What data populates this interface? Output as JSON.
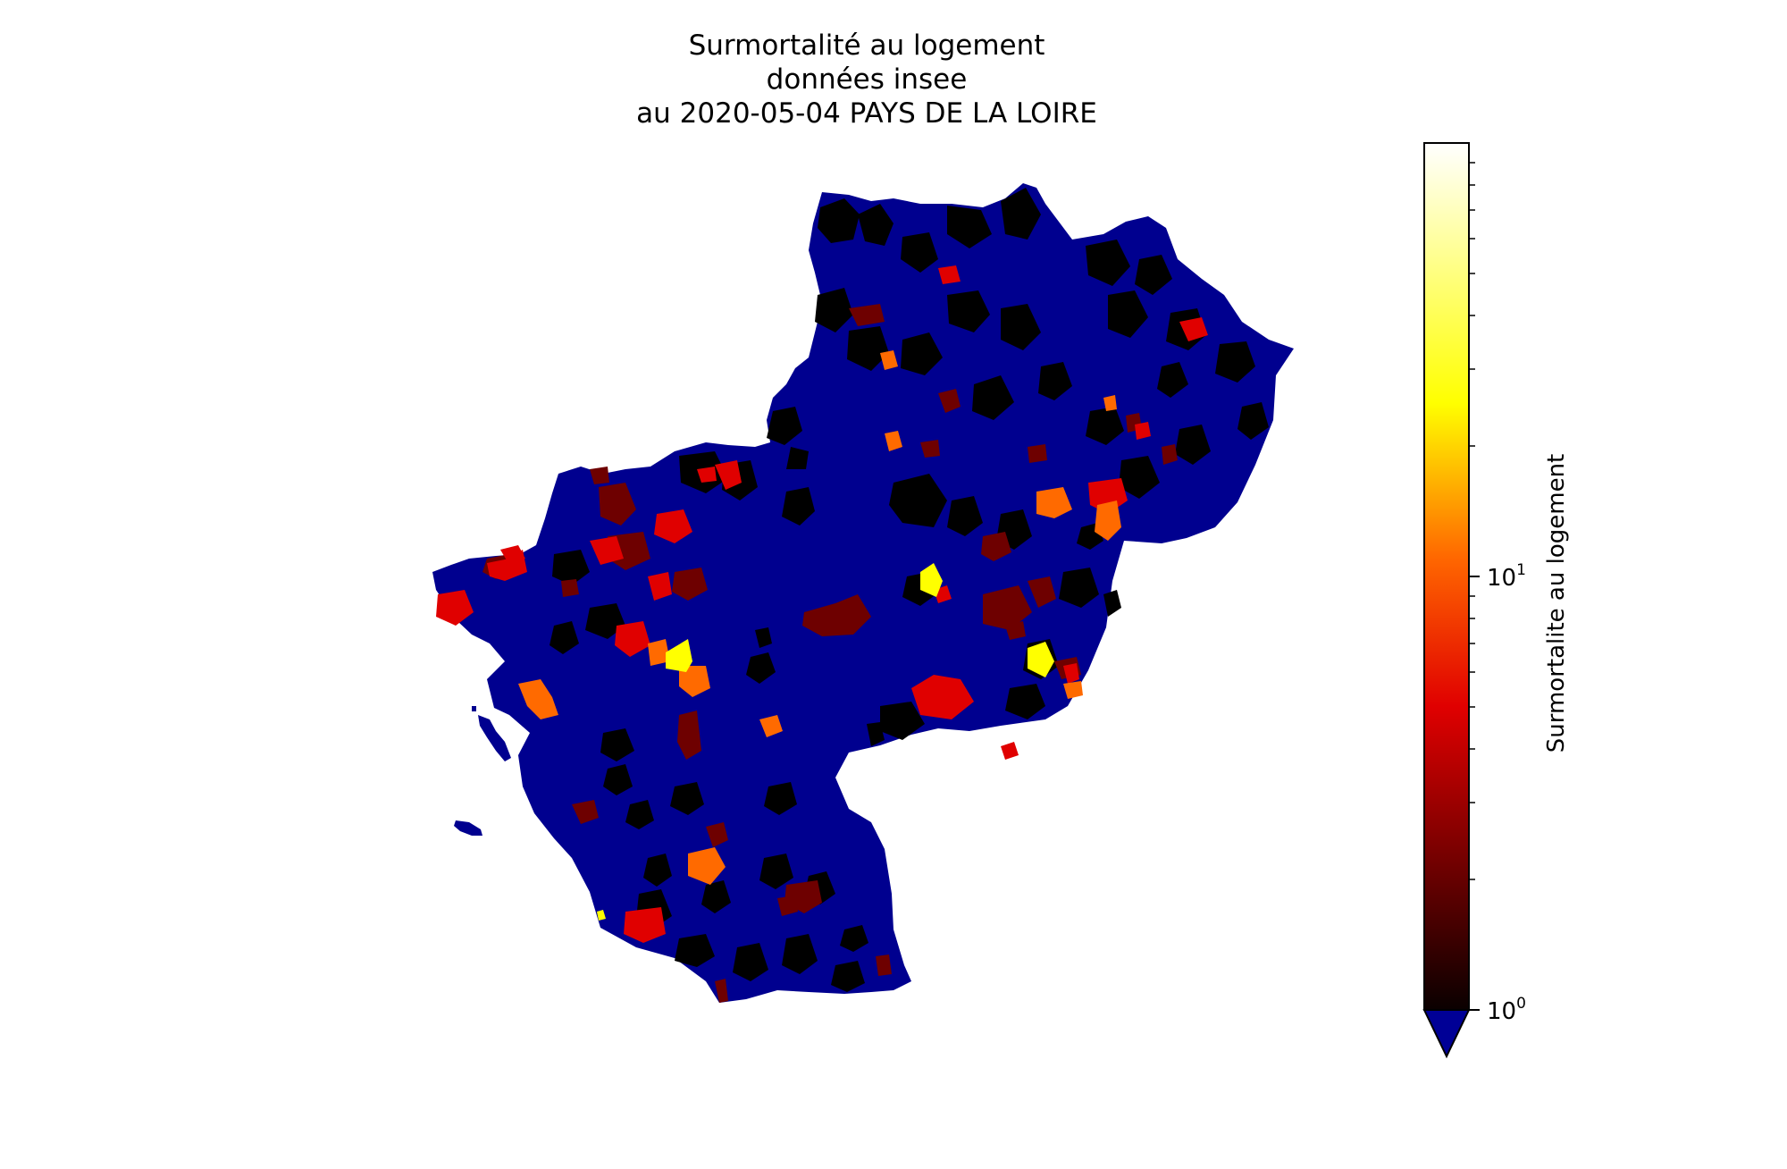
{
  "title": {
    "line1": "Surmortalité au logement",
    "line2": "données insee",
    "line3": "au 2020-05-04 PAYS DE LA LOIRE"
  },
  "colorbar": {
    "label": "Surmortalite au logement",
    "scale": "log",
    "range": [
      1,
      100
    ],
    "ticks": [
      {
        "base": "10",
        "exp": "0",
        "value": 1
      },
      {
        "base": "10",
        "exp": "1",
        "value": 10
      }
    ],
    "colormap": "hot",
    "under_color": "#000096",
    "extend": "min"
  },
  "map": {
    "region": "PAYS DE LA LOIRE",
    "base_color": "#00008f",
    "category_colors": {
      "below_1": "#00008f",
      "near_1": "#000000",
      "low": "#6e0000",
      "mid": "#e00000",
      "high": "#ff6a00",
      "very_high": "#ffff00"
    }
  }
}
